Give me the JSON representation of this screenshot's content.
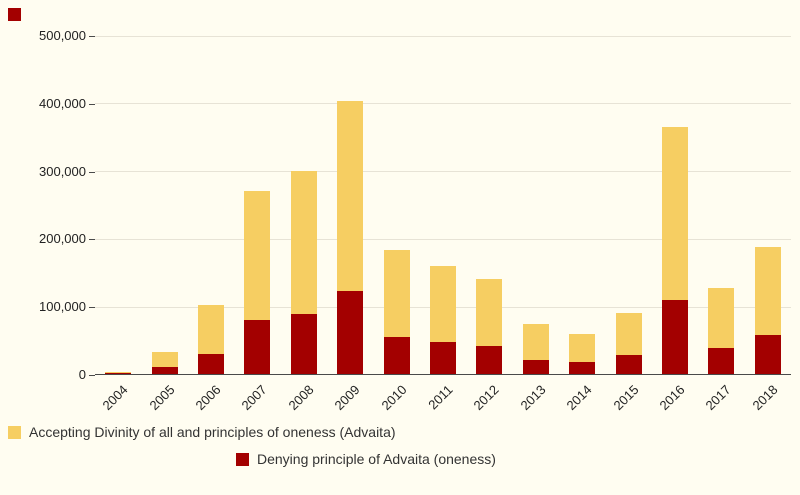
{
  "colors": {
    "background": "#fffdf1",
    "accepting": "#f6ce62",
    "denying": "#a30000",
    "axis": "#4a4a4a",
    "gridline": "#e7e3d6"
  },
  "legend": {
    "accepting_label": "Accepting Divinity of all and principles of oneness (Advaita)",
    "denying_label": "Denying principle of Advaita (oneness)"
  },
  "chart_data": {
    "type": "bar",
    "stacked": true,
    "title": "",
    "xlabel": "",
    "ylabel": "",
    "categories": [
      "2004",
      "2005",
      "2006",
      "2007",
      "2008",
      "2009",
      "2010",
      "2011",
      "2012",
      "2013",
      "2014",
      "2015",
      "2016",
      "2017",
      "2018"
    ],
    "series": [
      {
        "key": "denying",
        "name": "Denying principle of Advaita (oneness)",
        "color": "#a30000",
        "values": [
          1000,
          10000,
          30000,
          80000,
          88000,
          122000,
          55000,
          47000,
          41000,
          21000,
          18000,
          28000,
          109000,
          38000,
          57000
        ]
      },
      {
        "key": "accepting",
        "name": "Accepting Divinity of all and principles of oneness (Advaita)",
        "color": "#f6ce62",
        "values": [
          1000,
          23000,
          72000,
          190000,
          212000,
          281000,
          128000,
          113000,
          99000,
          53000,
          41000,
          62000,
          256000,
          89000,
          130000
        ]
      }
    ],
    "totals": [
      2000,
      33000,
      102000,
      270000,
      300000,
      403000,
      183000,
      160000,
      140000,
      74000,
      59000,
      90000,
      365000,
      127000,
      187000
    ],
    "ylim": [
      0,
      500000
    ],
    "yticks": [
      0,
      100000,
      200000,
      300000,
      400000,
      500000
    ],
    "ytick_labels": [
      "0",
      "100,000",
      "200,000",
      "300,000",
      "400,000",
      "500,000"
    ],
    "grid": true,
    "legend_position": "bottom"
  }
}
